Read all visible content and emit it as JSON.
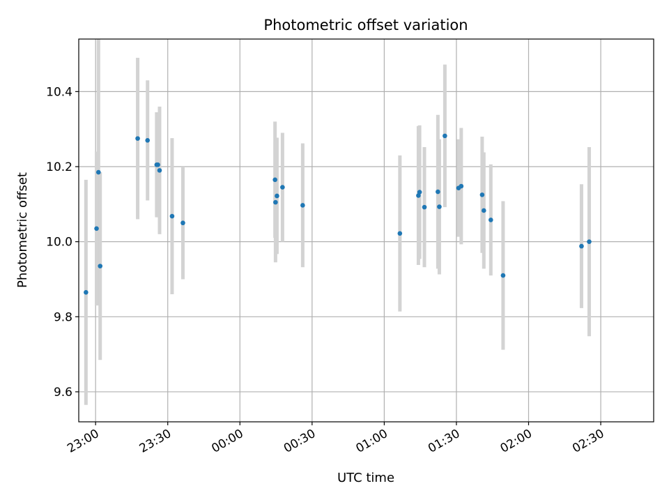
{
  "chart_data": {
    "type": "scatter",
    "title": "Photometric offset variation",
    "xlabel": "UTC time",
    "ylabel": "Photometric offset",
    "x_unit": "minutes after 22:00 UTC (base day)",
    "xlim": [
      53,
      292
    ],
    "ylim": [
      9.52,
      10.54
    ],
    "grid": true,
    "x_ticks": [
      {
        "value": 60,
        "label": "23:00"
      },
      {
        "value": 90,
        "label": "23:30"
      },
      {
        "value": 120,
        "label": "00:00"
      },
      {
        "value": 150,
        "label": "00:30"
      },
      {
        "value": 180,
        "label": "01:00"
      },
      {
        "value": 210,
        "label": "01:30"
      },
      {
        "value": 240,
        "label": "02:00"
      },
      {
        "value": 270,
        "label": "02:30"
      }
    ],
    "y_ticks": [
      {
        "value": 9.6,
        "label": "9.6"
      },
      {
        "value": 9.8,
        "label": "9.8"
      },
      {
        "value": 10.0,
        "label": "10.0"
      },
      {
        "value": 10.2,
        "label": "10.2"
      },
      {
        "value": 10.4,
        "label": "10.4"
      }
    ],
    "colors": {
      "point": "#1f77b4",
      "errorbar": "#d3d3d3",
      "grid": "#b0b0b0"
    },
    "points": [
      {
        "x": 56.0,
        "y": 9.865,
        "err": 0.3
      },
      {
        "x": 60.4,
        "y": 10.035,
        "err": 0.205
      },
      {
        "x": 61.2,
        "y": 10.185,
        "err": 0.355
      },
      {
        "x": 61.9,
        "y": 9.935,
        "err": 0.25
      },
      {
        "x": 77.5,
        "y": 10.275,
        "err": 0.215
      },
      {
        "x": 81.6,
        "y": 10.27,
        "err": 0.16
      },
      {
        "x": 85.4,
        "y": 10.205,
        "err": 0.14
      },
      {
        "x": 85.9,
        "y": 10.205,
        "err": 0.14
      },
      {
        "x": 86.6,
        "y": 10.19,
        "err": 0.17
      },
      {
        "x": 91.8,
        "y": 10.068,
        "err": 0.208
      },
      {
        "x": 96.3,
        "y": 10.05,
        "err": 0.15
      },
      {
        "x": 134.6,
        "y": 10.165,
        "err": 0.155
      },
      {
        "x": 135.4,
        "y": 10.122,
        "err": 0.155
      },
      {
        "x": 134.8,
        "y": 10.105,
        "err": 0.16
      },
      {
        "x": 137.7,
        "y": 10.145,
        "err": 0.145
      },
      {
        "x": 146.1,
        "y": 10.097,
        "err": 0.165
      },
      {
        "x": 186.5,
        "y": 10.022,
        "err": 0.208
      },
      {
        "x": 194.2,
        "y": 10.123,
        "err": 0.185
      },
      {
        "x": 194.7,
        "y": 10.132,
        "err": 0.178
      },
      {
        "x": 196.7,
        "y": 10.092,
        "err": 0.16
      },
      {
        "x": 202.3,
        "y": 10.133,
        "err": 0.205
      },
      {
        "x": 202.9,
        "y": 10.093,
        "err": 0.18
      },
      {
        "x": 205.2,
        "y": 10.282,
        "err": 0.19
      },
      {
        "x": 210.9,
        "y": 10.143,
        "err": 0.13
      },
      {
        "x": 212.0,
        "y": 10.148,
        "err": 0.155
      },
      {
        "x": 220.7,
        "y": 10.125,
        "err": 0.155
      },
      {
        "x": 221.4,
        "y": 10.083,
        "err": 0.155
      },
      {
        "x": 224.3,
        "y": 10.058,
        "err": 0.148
      },
      {
        "x": 229.4,
        "y": 9.91,
        "err": 0.198
      },
      {
        "x": 262.0,
        "y": 9.988,
        "err": 0.165
      },
      {
        "x": 265.2,
        "y": 10.0,
        "err": 0.252
      }
    ]
  }
}
